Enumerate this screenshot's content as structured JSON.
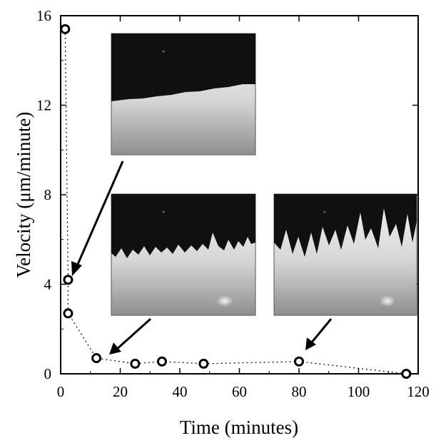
{
  "chart_data": {
    "type": "scatter",
    "xlabel": "Time (minutes)",
    "ylabel": "Velocity (μm/minute)",
    "xlim": [
      0,
      120
    ],
    "ylim": [
      0,
      16
    ],
    "x_ticks": [
      0,
      20,
      40,
      60,
      80,
      100,
      120
    ],
    "y_ticks": [
      0,
      4,
      8,
      12,
      16
    ],
    "grid": false,
    "line_style": "dotted",
    "marker": "open-circle",
    "series": [
      {
        "x": [
          1.5,
          2.5,
          2.5,
          12,
          25,
          34,
          48,
          80,
          116
        ],
        "y": [
          15.4,
          4.2,
          2.7,
          0.7,
          0.45,
          0.55,
          0.45,
          0.55,
          0.0
        ]
      }
    ],
    "insets": [
      {
        "id": "inset-flat-front",
        "description_icon": "grayscale-micrograph-flat-front",
        "points_to": {
          "x": 2.5,
          "y": 4.2
        }
      },
      {
        "id": "inset-rough-front",
        "description_icon": "grayscale-micrograph-rough-front",
        "points_to": {
          "x": 12,
          "y": 0.7
        }
      },
      {
        "id": "inset-fingered-front",
        "description_icon": "grayscale-micrograph-fingered-front",
        "points_to": {
          "x": 80,
          "y": 0.55
        }
      }
    ]
  }
}
